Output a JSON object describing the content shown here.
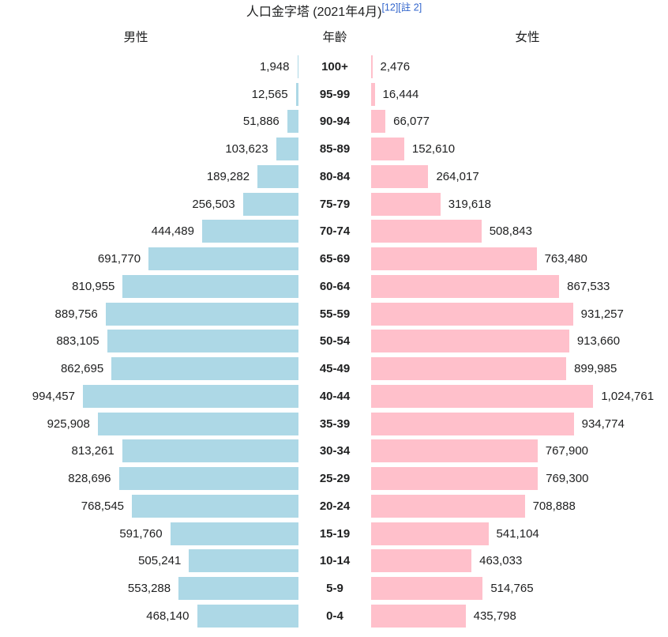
{
  "title": {
    "text": "人口金字塔 (2021年4月)",
    "ref1": "[12]",
    "ref2": "[註 2]"
  },
  "headers": {
    "male": "男性",
    "age": "年齡",
    "female": "女性"
  },
  "colors": {
    "male_bar": "#ADD8E6",
    "female_bar": "#FFC0CB",
    "text": "#202122",
    "link": "#3366cc"
  },
  "chart_data": {
    "type": "bar",
    "subtype": "population-pyramid",
    "title": "人口金字塔 (2021年4月)",
    "legend_position": "none",
    "grid": false,
    "value_axis_max_for_scale": 994457,
    "categories": [
      "100+",
      "95-99",
      "90-94",
      "85-89",
      "80-84",
      "75-79",
      "70-74",
      "65-69",
      "60-64",
      "55-59",
      "50-54",
      "45-49",
      "40-44",
      "35-39",
      "30-34",
      "25-29",
      "20-24",
      "15-19",
      "10-14",
      "5-9",
      "0-4"
    ],
    "series": [
      {
        "name": "男性",
        "values": [
          1948,
          12565,
          51886,
          103623,
          189282,
          256503,
          444489,
          691770,
          810955,
          889756,
          883105,
          862695,
          994457,
          925908,
          813261,
          828696,
          768545,
          591760,
          505241,
          553288,
          468140
        ]
      },
      {
        "name": "女性",
        "values": [
          2476,
          16444,
          66077,
          152610,
          264017,
          319618,
          508843,
          763480,
          867533,
          931257,
          913660,
          899985,
          1024761,
          934774,
          767900,
          769300,
          708888,
          541104,
          463033,
          514765,
          435798
        ]
      }
    ]
  }
}
